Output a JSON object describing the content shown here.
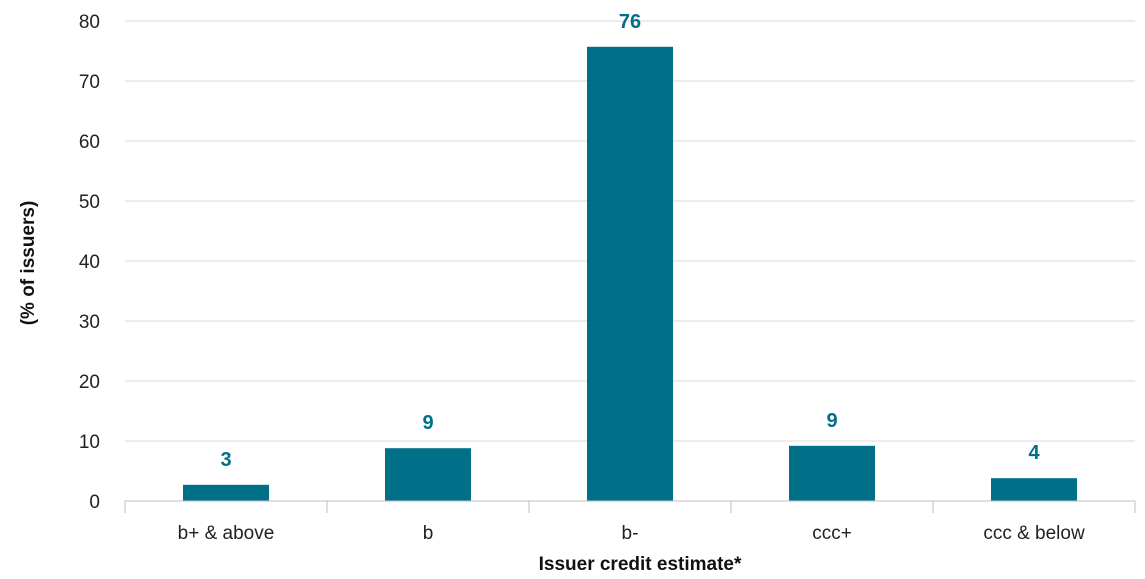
{
  "chart_data": {
    "type": "bar",
    "title": "",
    "xlabel": "Issuer credit estimate*",
    "ylabel": "(% of issuers)",
    "categories": [
      "b+ & above",
      "b",
      "b-",
      "ccc+",
      "ccc & below"
    ],
    "values": [
      2.7,
      8.8,
      75.7,
      9.2,
      3.8
    ],
    "data_labels": [
      "3",
      "9",
      "76",
      "9",
      "4"
    ],
    "ylim": [
      0,
      80
    ],
    "yticks": [
      0,
      10,
      20,
      30,
      40,
      50,
      60,
      70,
      80
    ],
    "grid": true,
    "legend": "none",
    "colors": {
      "bar": "#006f88",
      "data_label": "#006f88",
      "grid": "#d9d9d9",
      "axis": "#bfbfbf"
    }
  }
}
